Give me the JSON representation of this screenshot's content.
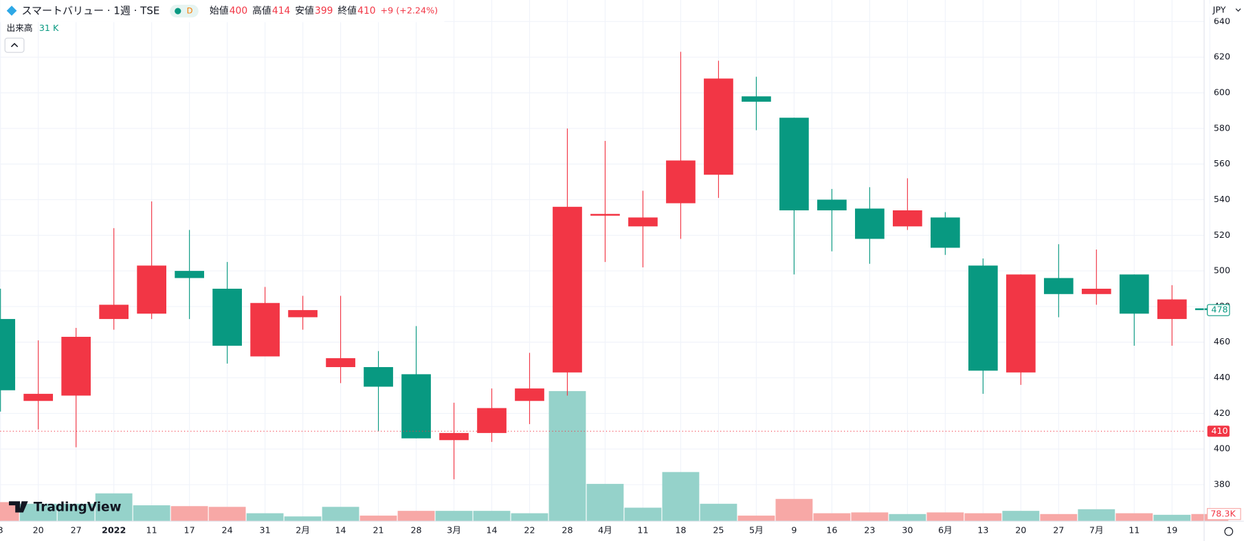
{
  "header": {
    "symbol": "スマートバリュー · 1週 · TSE",
    "badge": "D",
    "ohlc": [
      {
        "label": "始値",
        "value": "400"
      },
      {
        "label": "高値",
        "value": "414"
      },
      {
        "label": "安値",
        "value": "399"
      },
      {
        "label": "終値",
        "value": "410"
      }
    ],
    "change": "+9 (+2.24%)",
    "volume_label": "出来高",
    "volume_value": "31 K",
    "currency": "JPY",
    "logo": "TradingView"
  },
  "chart_data": {
    "type": "candlestick",
    "categories": [
      "3",
      "20",
      "27",
      "2022",
      "11",
      "17",
      "24",
      "31",
      "2月",
      "14",
      "21",
      "28",
      "3月",
      "14",
      "22",
      "28",
      "4月",
      "11",
      "18",
      "25",
      "5月",
      "9",
      "16",
      "23",
      "30",
      "6月",
      "13",
      "20",
      "27",
      "7月",
      "11",
      "19",
      null
    ],
    "open": [
      473,
      427,
      430,
      473,
      476,
      500,
      490,
      452,
      474,
      446,
      446,
      442,
      405,
      409,
      427,
      443,
      531,
      525,
      538,
      554,
      598,
      586,
      540,
      535,
      525,
      530,
      503,
      443,
      496,
      487,
      498,
      473,
      479
    ],
    "high": [
      490,
      461,
      468,
      524,
      539,
      523,
      505,
      491,
      486,
      486,
      455,
      469,
      426,
      434,
      454,
      580,
      573,
      545,
      623,
      618,
      609,
      586,
      546,
      547,
      552,
      533,
      507,
      498,
      515,
      512,
      498,
      492,
      479
    ],
    "low": [
      421,
      411,
      401,
      467,
      473,
      473,
      448,
      452,
      467,
      437,
      410,
      406,
      383,
      404,
      414,
      430,
      505,
      502,
      518,
      541,
      579,
      498,
      511,
      504,
      523,
      509,
      431,
      436,
      474,
      481,
      458,
      458,
      478
    ],
    "close": [
      433,
      431,
      463,
      481,
      503,
      496,
      458,
      482,
      478,
      451,
      435,
      406,
      409,
      423,
      434,
      536,
      532,
      530,
      562,
      608,
      595,
      534,
      534,
      518,
      534,
      513,
      444,
      498,
      487,
      490,
      476,
      484,
      478
    ],
    "volume": [
      209000,
      191000,
      191000,
      305000,
      174000,
      165000,
      157000,
      87000,
      52000,
      157000,
      61000,
      113000,
      113000,
      113000,
      87000,
      1427000,
      409000,
      148000,
      539000,
      191000,
      61000,
      244000,
      87000,
      96000,
      78000,
      96000,
      87000,
      113000,
      78000,
      131000,
      87000,
      70000,
      78300
    ],
    "volume_labels": [
      null,
      null,
      null,
      null,
      null,
      null,
      null,
      null,
      null,
      null,
      null,
      null,
      null,
      null,
      null,
      null,
      null,
      null,
      null,
      null,
      null,
      null,
      null,
      null,
      null,
      null,
      null,
      null,
      null,
      null,
      null,
      null,
      "78.3K"
    ],
    "up_color": "#f23645",
    "down_color": "#089981",
    "volume_up_color": "#95d2ca",
    "volume_down_color": "#f7a8a6",
    "ylim": [
      359.5,
      652.1
    ],
    "yticks": [
      380,
      400,
      420,
      440,
      460,
      480,
      500,
      520,
      540,
      560,
      580,
      600,
      620,
      640
    ],
    "volume_ylim": [
      0,
      1500000
    ],
    "grid": true,
    "daily_close": {
      "value": 410,
      "color": "#f23645"
    },
    "last_price": {
      "value": 478,
      "color": "#089981"
    }
  }
}
